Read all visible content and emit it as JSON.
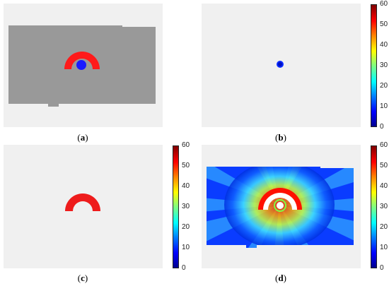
{
  "panels": [
    {
      "id": "a",
      "caption_letter": "a"
    },
    {
      "id": "b",
      "caption_letter": "b"
    },
    {
      "id": "c",
      "caption_letter": "c"
    },
    {
      "id": "d",
      "caption_letter": "d"
    }
  ],
  "colorbar": {
    "ticks": [
      "60",
      "50",
      "40",
      "30",
      "20",
      "10",
      "0"
    ],
    "colormap": "jet"
  },
  "colors": {
    "background": "#f0f0f0",
    "phantom_gray": "#999999",
    "target_red": "#ff1a1a",
    "organ_blue": "#1a1aff"
  }
}
